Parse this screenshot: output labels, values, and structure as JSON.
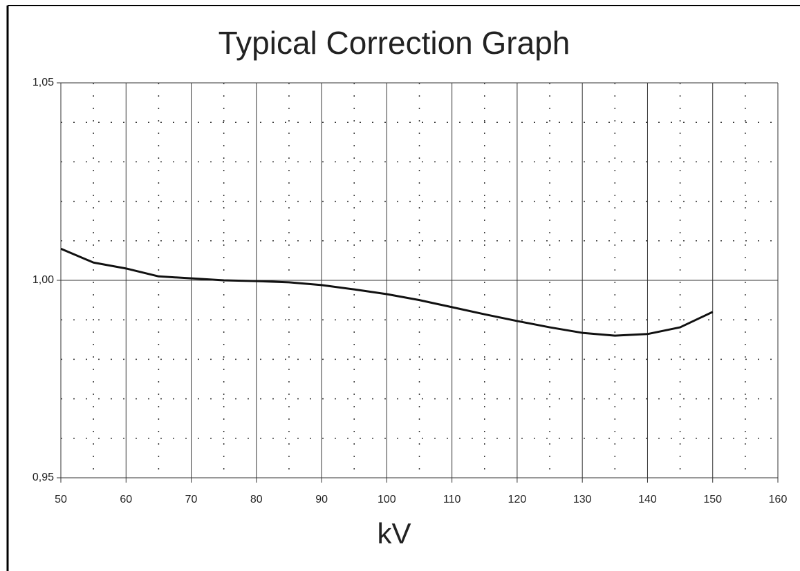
{
  "chart_data": {
    "type": "line",
    "title": "Typical Correction Graph",
    "x_label": "kV",
    "x": [
      50,
      55,
      60,
      65,
      70,
      75,
      80,
      85,
      90,
      95,
      100,
      105,
      110,
      115,
      120,
      125,
      130,
      135,
      140,
      145,
      150
    ],
    "series": [
      {
        "color": "#111111",
        "values": [
          1.008,
          1.0045,
          1.003,
          1.001,
          1.0005,
          1.0,
          0.9998,
          0.9995,
          0.9988,
          0.9977,
          0.9965,
          0.995,
          0.9932,
          0.9914,
          0.9897,
          0.9881,
          0.9867,
          0.986,
          0.9864,
          0.9881,
          0.992
        ]
      }
    ],
    "xlim": [
      50,
      160
    ],
    "xticks": [
      50,
      60,
      70,
      80,
      90,
      100,
      110,
      120,
      130,
      140,
      150,
      160
    ],
    "xminorticks": [
      55,
      65,
      75,
      85,
      95,
      105,
      115,
      125,
      135,
      145,
      155
    ],
    "ylim": [
      0.95,
      1.05
    ],
    "yticks": [
      {
        "value": 0.95,
        "label": "0,95"
      },
      {
        "value": 1.0,
        "label": "1,00"
      },
      {
        "value": 1.05,
        "label": "1,05"
      }
    ],
    "yminorticks": [
      0.96,
      0.97,
      0.98,
      0.99,
      1.01,
      1.02,
      1.03,
      1.04
    ],
    "grid": true
  }
}
